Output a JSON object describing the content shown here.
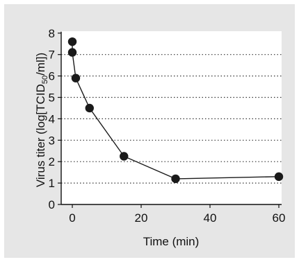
{
  "chart_data": {
    "type": "line",
    "title": "",
    "xlabel": "Time (min)",
    "ylabel_parts": [
      "Virus titer (log[TCID",
      "50",
      "/ml])"
    ],
    "ylabel": "Virus titer (log[TCID50/ml])",
    "xlim": [
      0,
      60
    ],
    "ylim": [
      0,
      8
    ],
    "xticks": [
      "0",
      "20",
      "40",
      "60"
    ],
    "yticks": [
      "0",
      "1",
      "2",
      "3",
      "4",
      "5",
      "6",
      "7",
      "8"
    ],
    "grid": "dotted horizontal",
    "series": [
      {
        "x": [
          0,
          0,
          1,
          5,
          15,
          30,
          60
        ],
        "y": [
          7.6,
          7.1,
          5.9,
          4.5,
          2.25,
          1.2,
          1.3
        ],
        "color": "#1a1a1a"
      }
    ]
  },
  "colors": {
    "panel_background": "#e6e6e6",
    "plot_background": "#ffffff",
    "marker": "#1a1a1a",
    "grid": "#333333"
  }
}
